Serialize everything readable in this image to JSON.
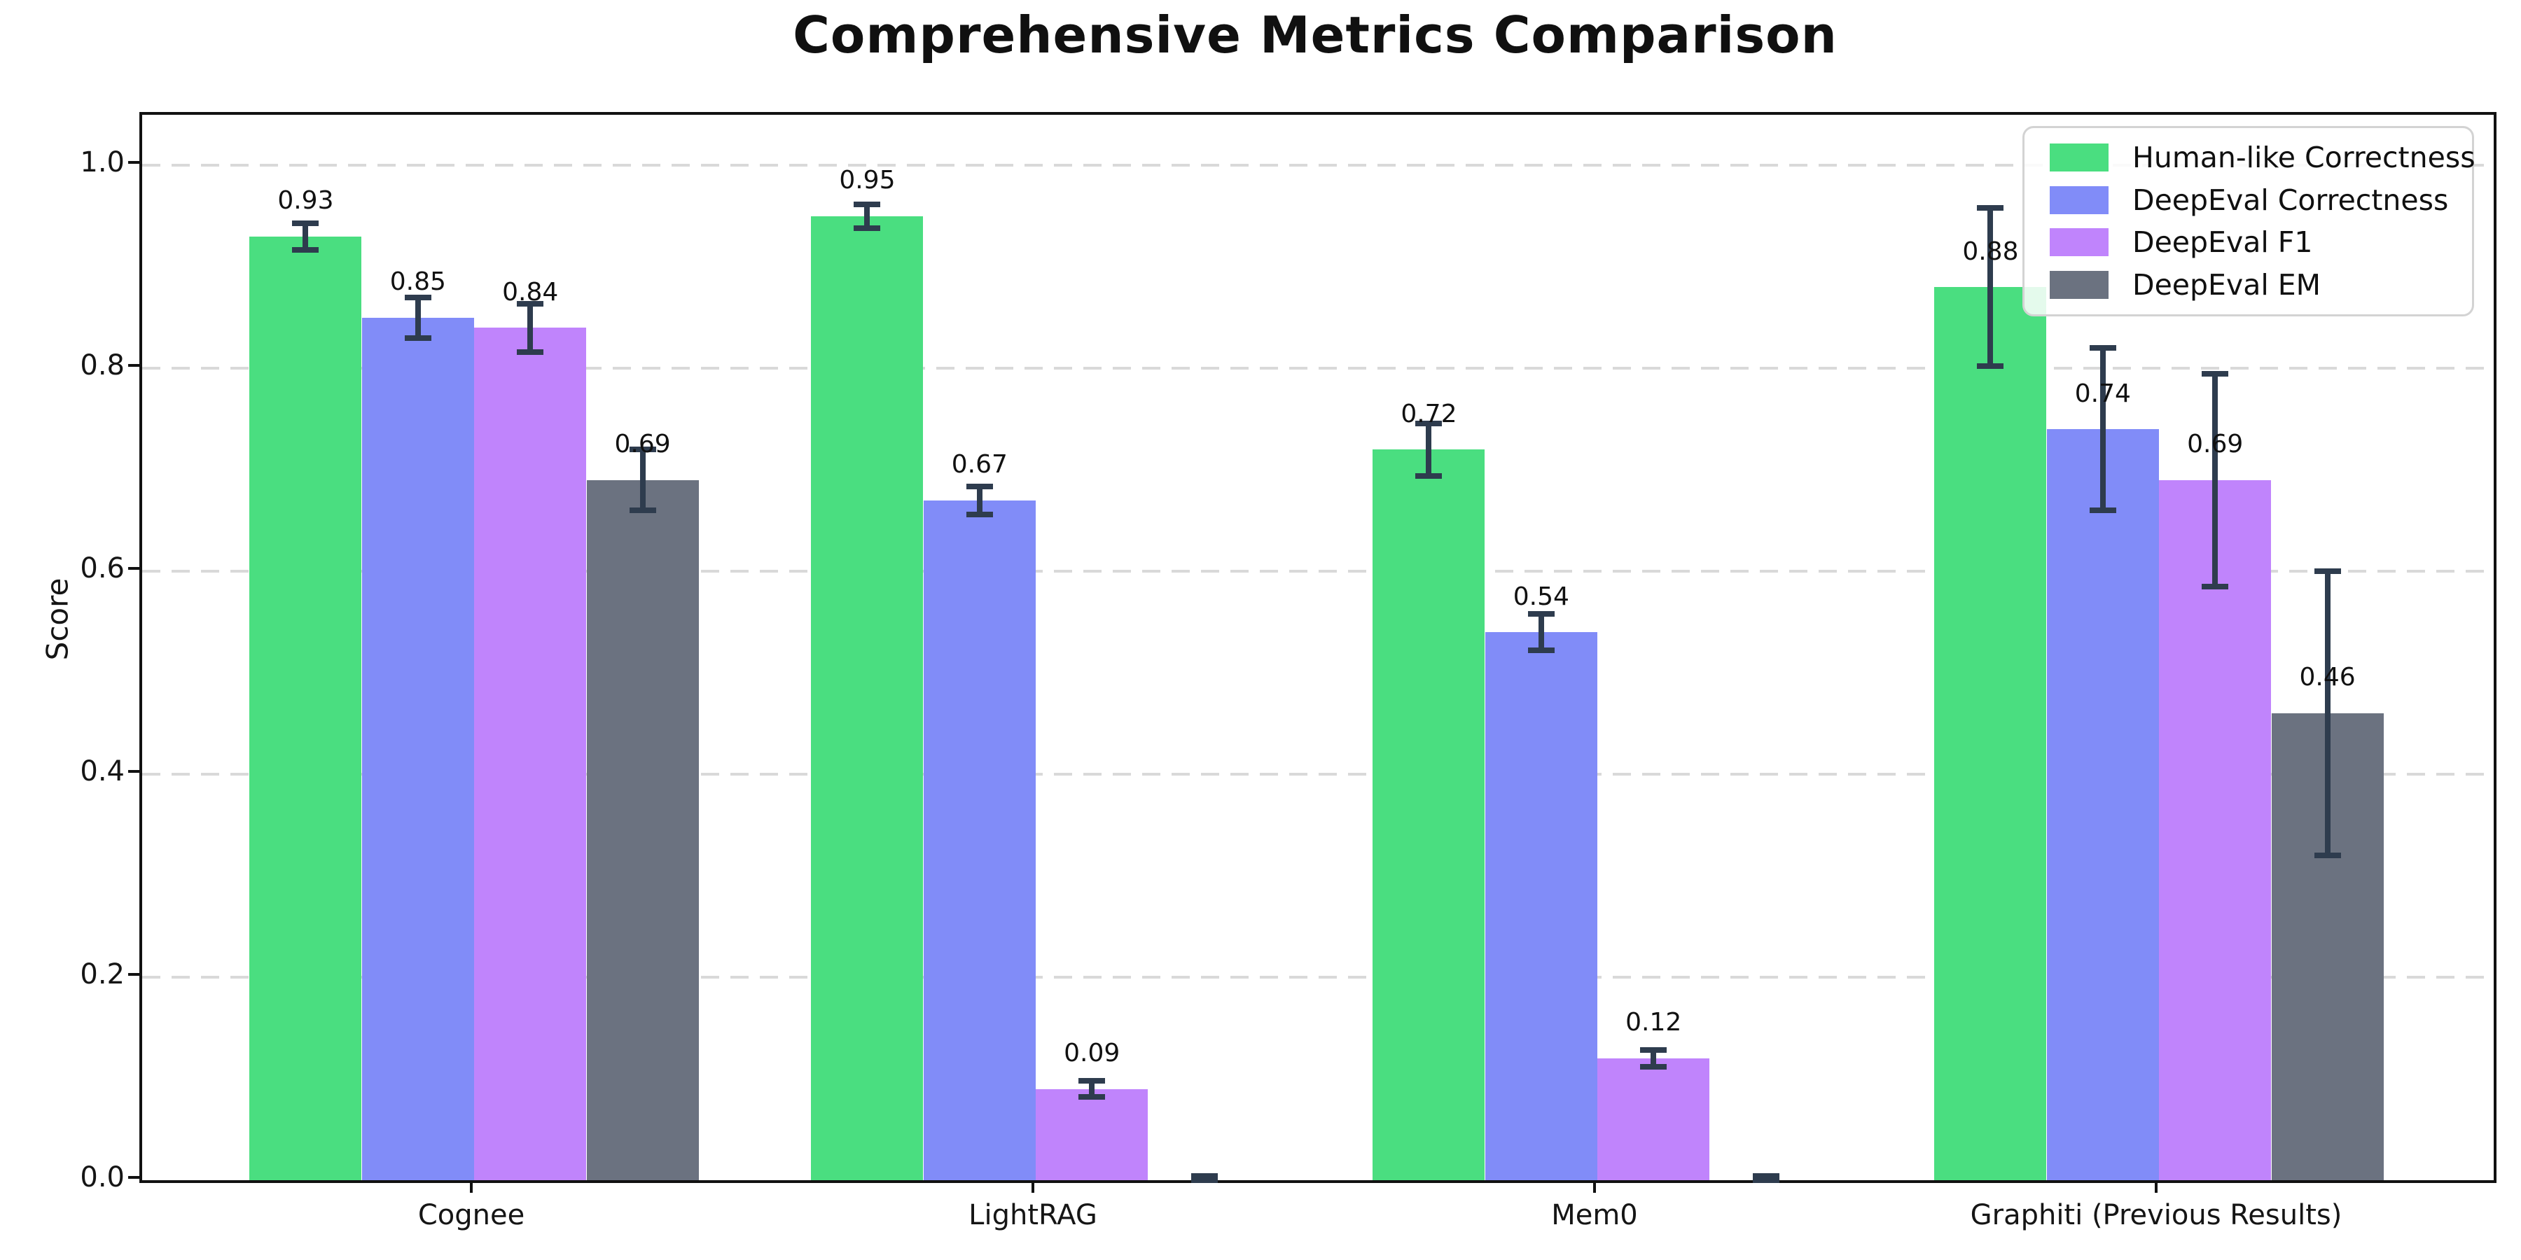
{
  "title": "Comprehensive Metrics Comparison",
  "chart_data": {
    "type": "bar",
    "title": "Comprehensive Metrics Comparison",
    "ylabel": "Score",
    "xlabel": "",
    "categories": [
      "Cognee",
      "LightRAG",
      "Mem0",
      "Graphiti (Previous Results)"
    ],
    "series": [
      {
        "name": "Human-like Correctness",
        "color": "#4ade80",
        "values": [
          0.93,
          0.95,
          0.72,
          0.88
        ],
        "errors": [
          0.013,
          0.012,
          0.026,
          0.078
        ],
        "value_labels": [
          "0.93",
          "0.95",
          "0.72",
          "0.88"
        ]
      },
      {
        "name": "DeepEval Correctness",
        "color": "#818cf8",
        "values": [
          0.85,
          0.67,
          0.54,
          0.74
        ],
        "errors": [
          0.02,
          0.014,
          0.018,
          0.08
        ],
        "value_labels": [
          "0.85",
          "0.67",
          "0.54",
          "0.74"
        ]
      },
      {
        "name": "DeepEval F1",
        "color": "#c084fc",
        "values": [
          0.84,
          0.09,
          0.12,
          0.69
        ],
        "errors": [
          0.024,
          0.008,
          0.008,
          0.105
        ],
        "value_labels": [
          "0.84",
          "0.09",
          "0.12",
          "0.69"
        ]
      },
      {
        "name": "DeepEval EM",
        "color": "#6b7280",
        "values": [
          0.69,
          0.0,
          0.0,
          0.46
        ],
        "errors": [
          0.03,
          0.004,
          0.004,
          0.14
        ],
        "value_labels": [
          "0.69",
          "",
          "",
          "0.46"
        ]
      }
    ],
    "yticks": [
      {
        "value": 0.0,
        "label": "0.0"
      },
      {
        "value": 0.2,
        "label": "0.2"
      },
      {
        "value": 0.4,
        "label": "0.4"
      },
      {
        "value": 0.6,
        "label": "0.6"
      },
      {
        "value": 0.8,
        "label": "0.8"
      },
      {
        "value": 1.0,
        "label": "1.0"
      }
    ],
    "ylim": [
      0,
      1.05
    ],
    "grid": {
      "axis": "y",
      "style": "dashed",
      "color": "#d9d9d9"
    },
    "legend": {
      "position": "upper right"
    },
    "error_bar_color": "#2e3c4e",
    "spine_color": "#111111"
  }
}
